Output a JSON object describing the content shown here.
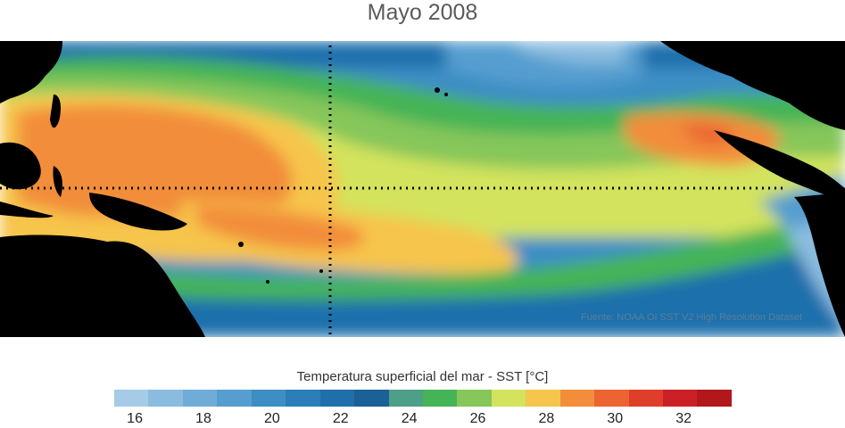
{
  "title": "Mayo 2008",
  "map": {
    "source_note": "Fuente: NOAA OI SST V2 High Resolution Dataset",
    "land_color": "#000000",
    "guide_lines": "dotted"
  },
  "colorbar": {
    "label": "Temperatura superficial del mar - SST  [°C]",
    "colors": [
      "#a6cbe6",
      "#8abcdf",
      "#6fadd8",
      "#559ecf",
      "#3d8ec5",
      "#2b7eb9",
      "#1f6fac",
      "#1b6096",
      "#4e9f87",
      "#45b456",
      "#86c65a",
      "#d3e35d",
      "#f6c54c",
      "#f28d3b",
      "#ec6431",
      "#df3f2a",
      "#cc2027",
      "#b2171c"
    ],
    "ticks": [
      "16",
      "18",
      "20",
      "22",
      "24",
      "26",
      "28",
      "30",
      "32"
    ]
  }
}
